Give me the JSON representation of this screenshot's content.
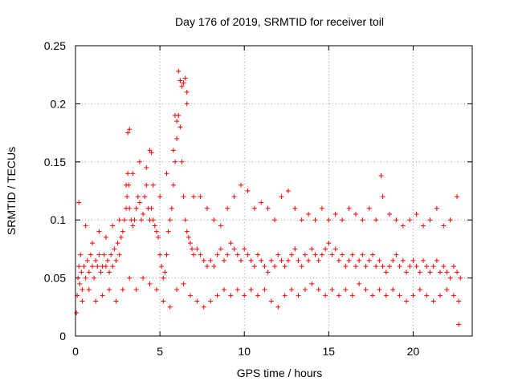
{
  "chart_data": {
    "type": "scatter",
    "title": "Day 176 of 2019, SRMTID for receiver toil",
    "xlabel": "GPS time / hours",
    "ylabel": "SRMTID / TECUs",
    "xlim": [
      0,
      23.5
    ],
    "ylim": [
      0,
      0.25
    ],
    "xticks": [
      0,
      5,
      10,
      15,
      20
    ],
    "xtick_labels": [
      "0",
      "5",
      "10",
      "15",
      "20"
    ],
    "yticks": [
      0,
      0.05,
      0.1,
      0.15,
      0.2,
      0.25
    ],
    "ytick_labels": [
      "0",
      "0.05",
      "0.1",
      "0.15",
      "0.2",
      "0.25"
    ],
    "grid": true,
    "marker": "plus",
    "color": "#ff0000",
    "series": [
      {
        "name": "SRMTID",
        "x": [
          0.05,
          0.1,
          0.15,
          0.2,
          0.25,
          0.3,
          0.35,
          0.4,
          0.5,
          0.6,
          0.7,
          0.8,
          0.9,
          1.0,
          1.1,
          1.2,
          1.3,
          1.4,
          1.5,
          1.6,
          1.7,
          1.8,
          1.9,
          2.0,
          2.1,
          2.2,
          2.3,
          2.4,
          2.5,
          2.6,
          2.7,
          2.8,
          2.9,
          3.0,
          3.05,
          3.1,
          3.15,
          3.2,
          3.3,
          3.4,
          3.5,
          3.6,
          3.7,
          3.8,
          3.9,
          4.0,
          4.1,
          4.2,
          4.3,
          4.4,
          4.5,
          4.6,
          4.7,
          4.8,
          4.9,
          5.0,
          5.1,
          5.2,
          5.3,
          5.4,
          5.5,
          5.6,
          5.7,
          5.8,
          5.9,
          6.0,
          6.1,
          6.2,
          6.3,
          6.4,
          6.5,
          6.6,
          6.7,
          6.8,
          6.9,
          7.0,
          7.2,
          7.4,
          7.6,
          7.8,
          8.0,
          8.2,
          8.4,
          8.6,
          8.8,
          9.0,
          9.2,
          9.4,
          9.6,
          9.8,
          10.0,
          10.2,
          10.4,
          10.6,
          10.8,
          11.0,
          11.2,
          11.4,
          11.6,
          11.8,
          12.0,
          12.2,
          12.4,
          12.6,
          12.8,
          13.0,
          13.2,
          13.4,
          13.6,
          13.8,
          14.0,
          14.2,
          14.4,
          14.6,
          14.8,
          15.0,
          15.2,
          15.4,
          15.6,
          15.8,
          16.0,
          16.2,
          16.4,
          16.6,
          16.8,
          17.0,
          17.2,
          17.4,
          17.6,
          17.8,
          18.0,
          18.2,
          18.4,
          18.6,
          18.8,
          19.0,
          19.2,
          19.4,
          19.6,
          19.8,
          20.0,
          20.2,
          20.4,
          20.6,
          20.8,
          21.0,
          21.2,
          21.4,
          21.6,
          21.8,
          22.0,
          22.2,
          22.4,
          22.6,
          22.8,
          0.2,
          0.6,
          1.0,
          1.4,
          1.8,
          2.2,
          2.6,
          3.0,
          3.4,
          3.8,
          4.2,
          4.6,
          5.0,
          5.4,
          5.8,
          6.2,
          6.6,
          7.0,
          7.4,
          7.8,
          8.2,
          8.6,
          9.0,
          9.4,
          9.8,
          10.2,
          10.6,
          11.0,
          11.4,
          11.8,
          12.2,
          12.6,
          13.0,
          13.4,
          13.8,
          14.2,
          14.6,
          15.0,
          15.4,
          15.8,
          16.2,
          16.6,
          17.0,
          17.4,
          17.8,
          18.2,
          18.6,
          19.0,
          19.4,
          19.8,
          20.2,
          20.6,
          21.0,
          21.4,
          21.8,
          22.2,
          22.6,
          0.4,
          0.8,
          1.2,
          1.6,
          2.0,
          2.4,
          2.8,
          3.2,
          3.6,
          4.0,
          4.4,
          4.8,
          5.2,
          5.6,
          6.0,
          6.4,
          6.8,
          7.2,
          7.6,
          8.0,
          8.4,
          8.8,
          9.2,
          9.6,
          10.0,
          10.4,
          10.8,
          11.2,
          11.6,
          12.0,
          12.4,
          12.8,
          13.2,
          13.6,
          14.0,
          14.4,
          14.8,
          15.2,
          15.6,
          16.0,
          16.4,
          16.8,
          17.2,
          17.6,
          18.0,
          18.4,
          18.8,
          19.2,
          19.6,
          20.0,
          20.4,
          20.8,
          21.2,
          21.6,
          22.0,
          22.4,
          22.7,
          6.1,
          6.2,
          6.3,
          6.4,
          6.5,
          6.6,
          3.1,
          3.2,
          4.4,
          4.5,
          5.9,
          6.0,
          18.1,
          22.7
        ],
        "y": [
          0.02,
          0.035,
          0.05,
          0.06,
          0.045,
          0.07,
          0.055,
          0.04,
          0.06,
          0.05,
          0.065,
          0.055,
          0.07,
          0.06,
          0.05,
          0.065,
          0.06,
          0.07,
          0.055,
          0.06,
          0.07,
          0.06,
          0.065,
          0.055,
          0.07,
          0.06,
          0.075,
          0.065,
          0.08,
          0.07,
          0.085,
          0.09,
          0.1,
          0.11,
          0.12,
          0.14,
          0.13,
          0.11,
          0.1,
          0.095,
          0.1,
          0.11,
          0.12,
          0.115,
          0.1,
          0.105,
          0.12,
          0.13,
          0.11,
          0.1,
          0.11,
          0.1,
          0.095,
          0.09,
          0.085,
          0.07,
          0.06,
          0.05,
          0.055,
          0.07,
          0.09,
          0.1,
          0.11,
          0.13,
          0.15,
          0.17,
          0.19,
          0.18,
          0.15,
          0.12,
          0.1,
          0.09,
          0.085,
          0.08,
          0.075,
          0.07,
          0.075,
          0.07,
          0.065,
          0.06,
          0.065,
          0.06,
          0.07,
          0.075,
          0.065,
          0.07,
          0.08,
          0.075,
          0.07,
          0.065,
          0.075,
          0.07,
          0.065,
          0.06,
          0.07,
          0.065,
          0.06,
          0.055,
          0.065,
          0.06,
          0.07,
          0.065,
          0.06,
          0.065,
          0.07,
          0.075,
          0.065,
          0.06,
          0.07,
          0.065,
          0.075,
          0.07,
          0.065,
          0.07,
          0.075,
          0.08,
          0.07,
          0.075,
          0.065,
          0.07,
          0.06,
          0.065,
          0.07,
          0.06,
          0.065,
          0.07,
          0.06,
          0.065,
          0.07,
          0.06,
          0.065,
          0.06,
          0.055,
          0.06,
          0.065,
          0.07,
          0.06,
          0.065,
          0.055,
          0.06,
          0.065,
          0.06,
          0.055,
          0.065,
          0.06,
          0.055,
          0.06,
          0.065,
          0.055,
          0.06,
          0.055,
          0.05,
          0.06,
          0.055,
          0.05,
          0.115,
          0.095,
          0.08,
          0.09,
          0.085,
          0.095,
          0.1,
          0.13,
          0.14,
          0.15,
          0.145,
          0.13,
          0.12,
          0.14,
          0.16,
          0.22,
          0.21,
          0.12,
          0.12,
          0.11,
          0.1,
          0.095,
          0.11,
          0.12,
          0.13,
          0.125,
          0.11,
          0.115,
          0.11,
          0.1,
          0.12,
          0.125,
          0.11,
          0.1,
          0.105,
          0.1,
          0.11,
          0.1,
          0.105,
          0.1,
          0.11,
          0.105,
          0.1,
          0.11,
          0.1,
          0.12,
          0.105,
          0.1,
          0.095,
          0.1,
          0.105,
          0.095,
          0.1,
          0.11,
          0.095,
          0.1,
          0.12,
          0.03,
          0.04,
          0.03,
          0.035,
          0.04,
          0.03,
          0.04,
          0.05,
          0.04,
          0.05,
          0.045,
          0.04,
          0.03,
          0.025,
          0.04,
          0.045,
          0.035,
          0.03,
          0.025,
          0.03,
          0.035,
          0.04,
          0.035,
          0.04,
          0.035,
          0.04,
          0.035,
          0.04,
          0.03,
          0.025,
          0.035,
          0.04,
          0.035,
          0.04,
          0.045,
          0.04,
          0.035,
          0.04,
          0.035,
          0.04,
          0.035,
          0.045,
          0.04,
          0.035,
          0.04,
          0.035,
          0.04,
          0.035,
          0.03,
          0.035,
          0.04,
          0.035,
          0.03,
          0.035,
          0.04,
          0.035,
          0.03,
          0.228,
          0.22,
          0.215,
          0.218,
          0.222,
          0.2,
          0.175,
          0.178,
          0.16,
          0.158,
          0.19,
          0.185,
          0.138,
          0.01
        ]
      }
    ]
  }
}
